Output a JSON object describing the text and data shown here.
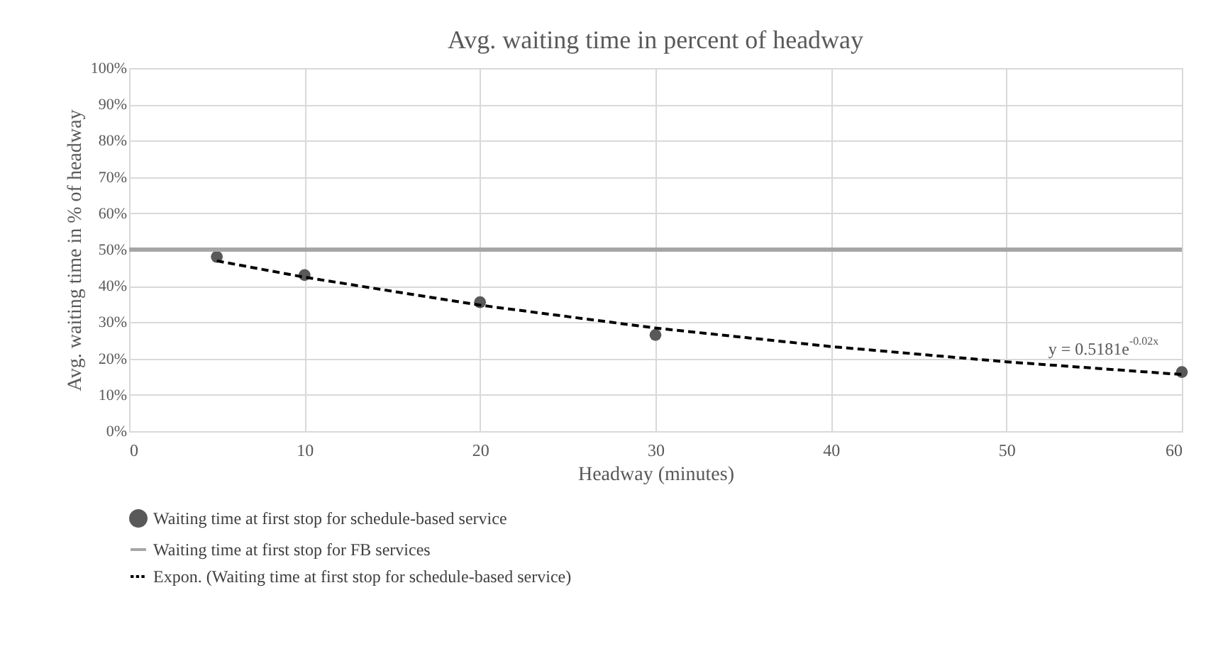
{
  "chart_data": {
    "type": "scatter",
    "title": "Avg. waiting time in percent of headway",
    "xlabel": "Headway (minutes)",
    "ylabel": "Avg. waiting time in % of headway",
    "xlim": [
      0,
      60
    ],
    "xticks": [
      0,
      10,
      20,
      30,
      40,
      50,
      60
    ],
    "ylim": [
      0,
      100
    ],
    "yticks": [
      {
        "value": 0,
        "label": "0%"
      },
      {
        "value": 10,
        "label": "10%"
      },
      {
        "value": 20,
        "label": "20%"
      },
      {
        "value": 30,
        "label": "30%"
      },
      {
        "value": 40,
        "label": "40%"
      },
      {
        "value": 50,
        "label": "50%"
      },
      {
        "value": 60,
        "label": "60%"
      },
      {
        "value": 70,
        "label": "70%"
      },
      {
        "value": 80,
        "label": "80%"
      },
      {
        "value": 90,
        "label": "90%"
      },
      {
        "value": 100,
        "label": "100%"
      }
    ],
    "grid": true,
    "legend": "bottom",
    "series": [
      {
        "name": "Waiting time at first stop for schedule-based service",
        "marker": "circle",
        "color": "#595959",
        "x": [
          5,
          10,
          20,
          30,
          60
        ],
        "values": [
          48,
          43,
          35.5,
          26.5,
          16.3
        ]
      },
      {
        "name": "Waiting time at first stop for FB services",
        "type": "line",
        "line_style": "solid",
        "color": "#a6a6a6",
        "x": [
          0,
          60
        ],
        "values": [
          50,
          50
        ]
      },
      {
        "name": "Expon. (Waiting time at first stop for schedule-based service)",
        "type": "line",
        "line_style": "dashed",
        "color": "#000000",
        "x": [
          5,
          10,
          20,
          30,
          40,
          50,
          60
        ],
        "values": [
          46.9,
          42.4,
          34.7,
          28.4,
          23.3,
          19.1,
          15.6
        ]
      }
    ],
    "annotations": [
      "y = 0.5181e$^{-0.02x}$"
    ]
  }
}
